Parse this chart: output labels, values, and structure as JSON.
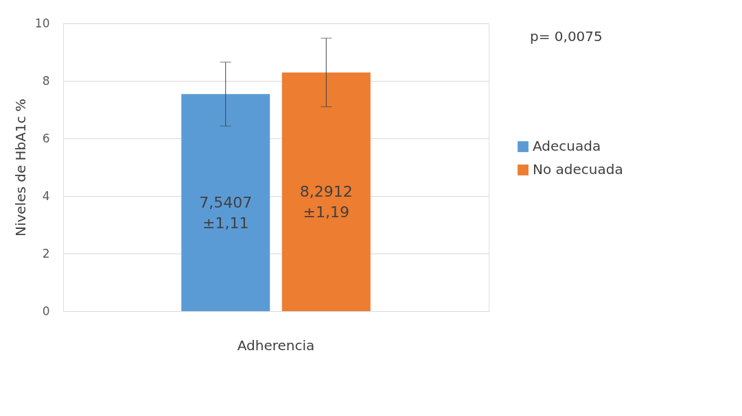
{
  "chart_data": {
    "type": "bar",
    "ylabel": "Niveles de HbA1c %",
    "categories": [
      "Adherencia"
    ],
    "series": [
      {
        "name": "Adecuada",
        "color": "#5b9bd5",
        "values": [
          7.5407
        ],
        "errors": [
          1.11
        ],
        "value_labels": [
          "7,5407\n±1,11"
        ]
      },
      {
        "name": "No adecuada",
        "color": "#ed7d31",
        "values": [
          8.2912
        ],
        "errors": [
          1.19
        ],
        "value_labels": [
          "8,2912\n±1,19"
        ]
      }
    ],
    "ylim": [
      0,
      10
    ],
    "yticks": [
      0,
      2,
      4,
      6,
      8,
      10
    ],
    "grid": "y",
    "legend": "right",
    "annotations": [
      "p= 0,0075"
    ]
  }
}
